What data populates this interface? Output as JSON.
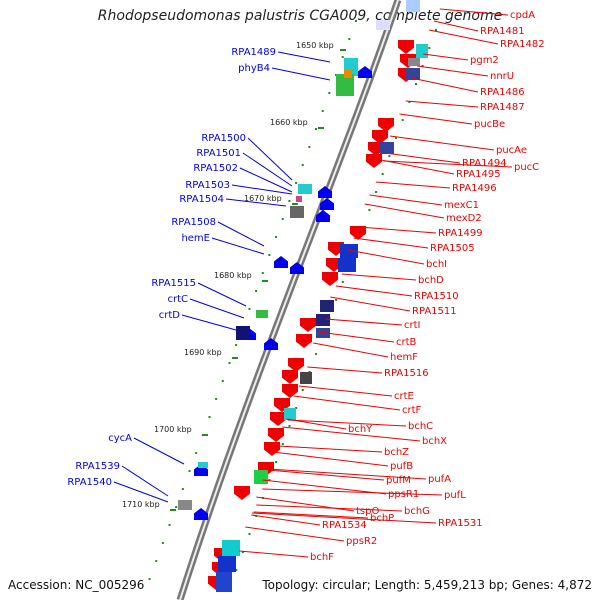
{
  "header": {
    "title": "Rhodopseudomonas palustris CGA009, complete genome"
  },
  "footer": {
    "accession": "Accession: NC_005296",
    "topology": "Topology: circular; Length: 5,459,213 bp; Genes: 4,872"
  },
  "kbp_labels": [
    "1650 kbp",
    "1660 kbp",
    "1670 kbp",
    "1680 kbp",
    "1690 kbp",
    "1700 kbp",
    "1710 kbp"
  ],
  "left_labels": [
    "RPA1489",
    "phyB4",
    "RPA1500",
    "RPA1501",
    "RPA1502",
    "RPA1503",
    "RPA1504",
    "RPA1508",
    "hemE",
    "RPA1515",
    "crtC",
    "crtD",
    "cycA",
    "RPA1539",
    "RPA1540"
  ],
  "right_labels": [
    "cpdA",
    "RPA1481",
    "RPA1482",
    "pgm2",
    "nnrU",
    "RPA1486",
    "RPA1487",
    "pucBe",
    "pucAe",
    "pucC",
    "RPA1494",
    "RPA1495",
    "RPA1496",
    "mexC1",
    "mexD2",
    "RPA1499",
    "RPA1505",
    "bchI",
    "bchD",
    "RPA1510",
    "RPA1511",
    "crtI",
    "crtB",
    "hemF",
    "RPA1516",
    "crtE",
    "crtF",
    "bchC",
    "bchY",
    "bchX",
    "bchZ",
    "pufA",
    "pufB",
    "pufL",
    "pufM",
    "ppsR1",
    "bchG",
    "RPA1531",
    "tspO",
    "bchP",
    "RPA1534",
    "ppsR2",
    "bchF"
  ],
  "colors": {
    "reverse_strand": "#0000ee",
    "forward_strand": "#ee0000",
    "backbone": "#888888",
    "tick": "#228b22"
  }
}
